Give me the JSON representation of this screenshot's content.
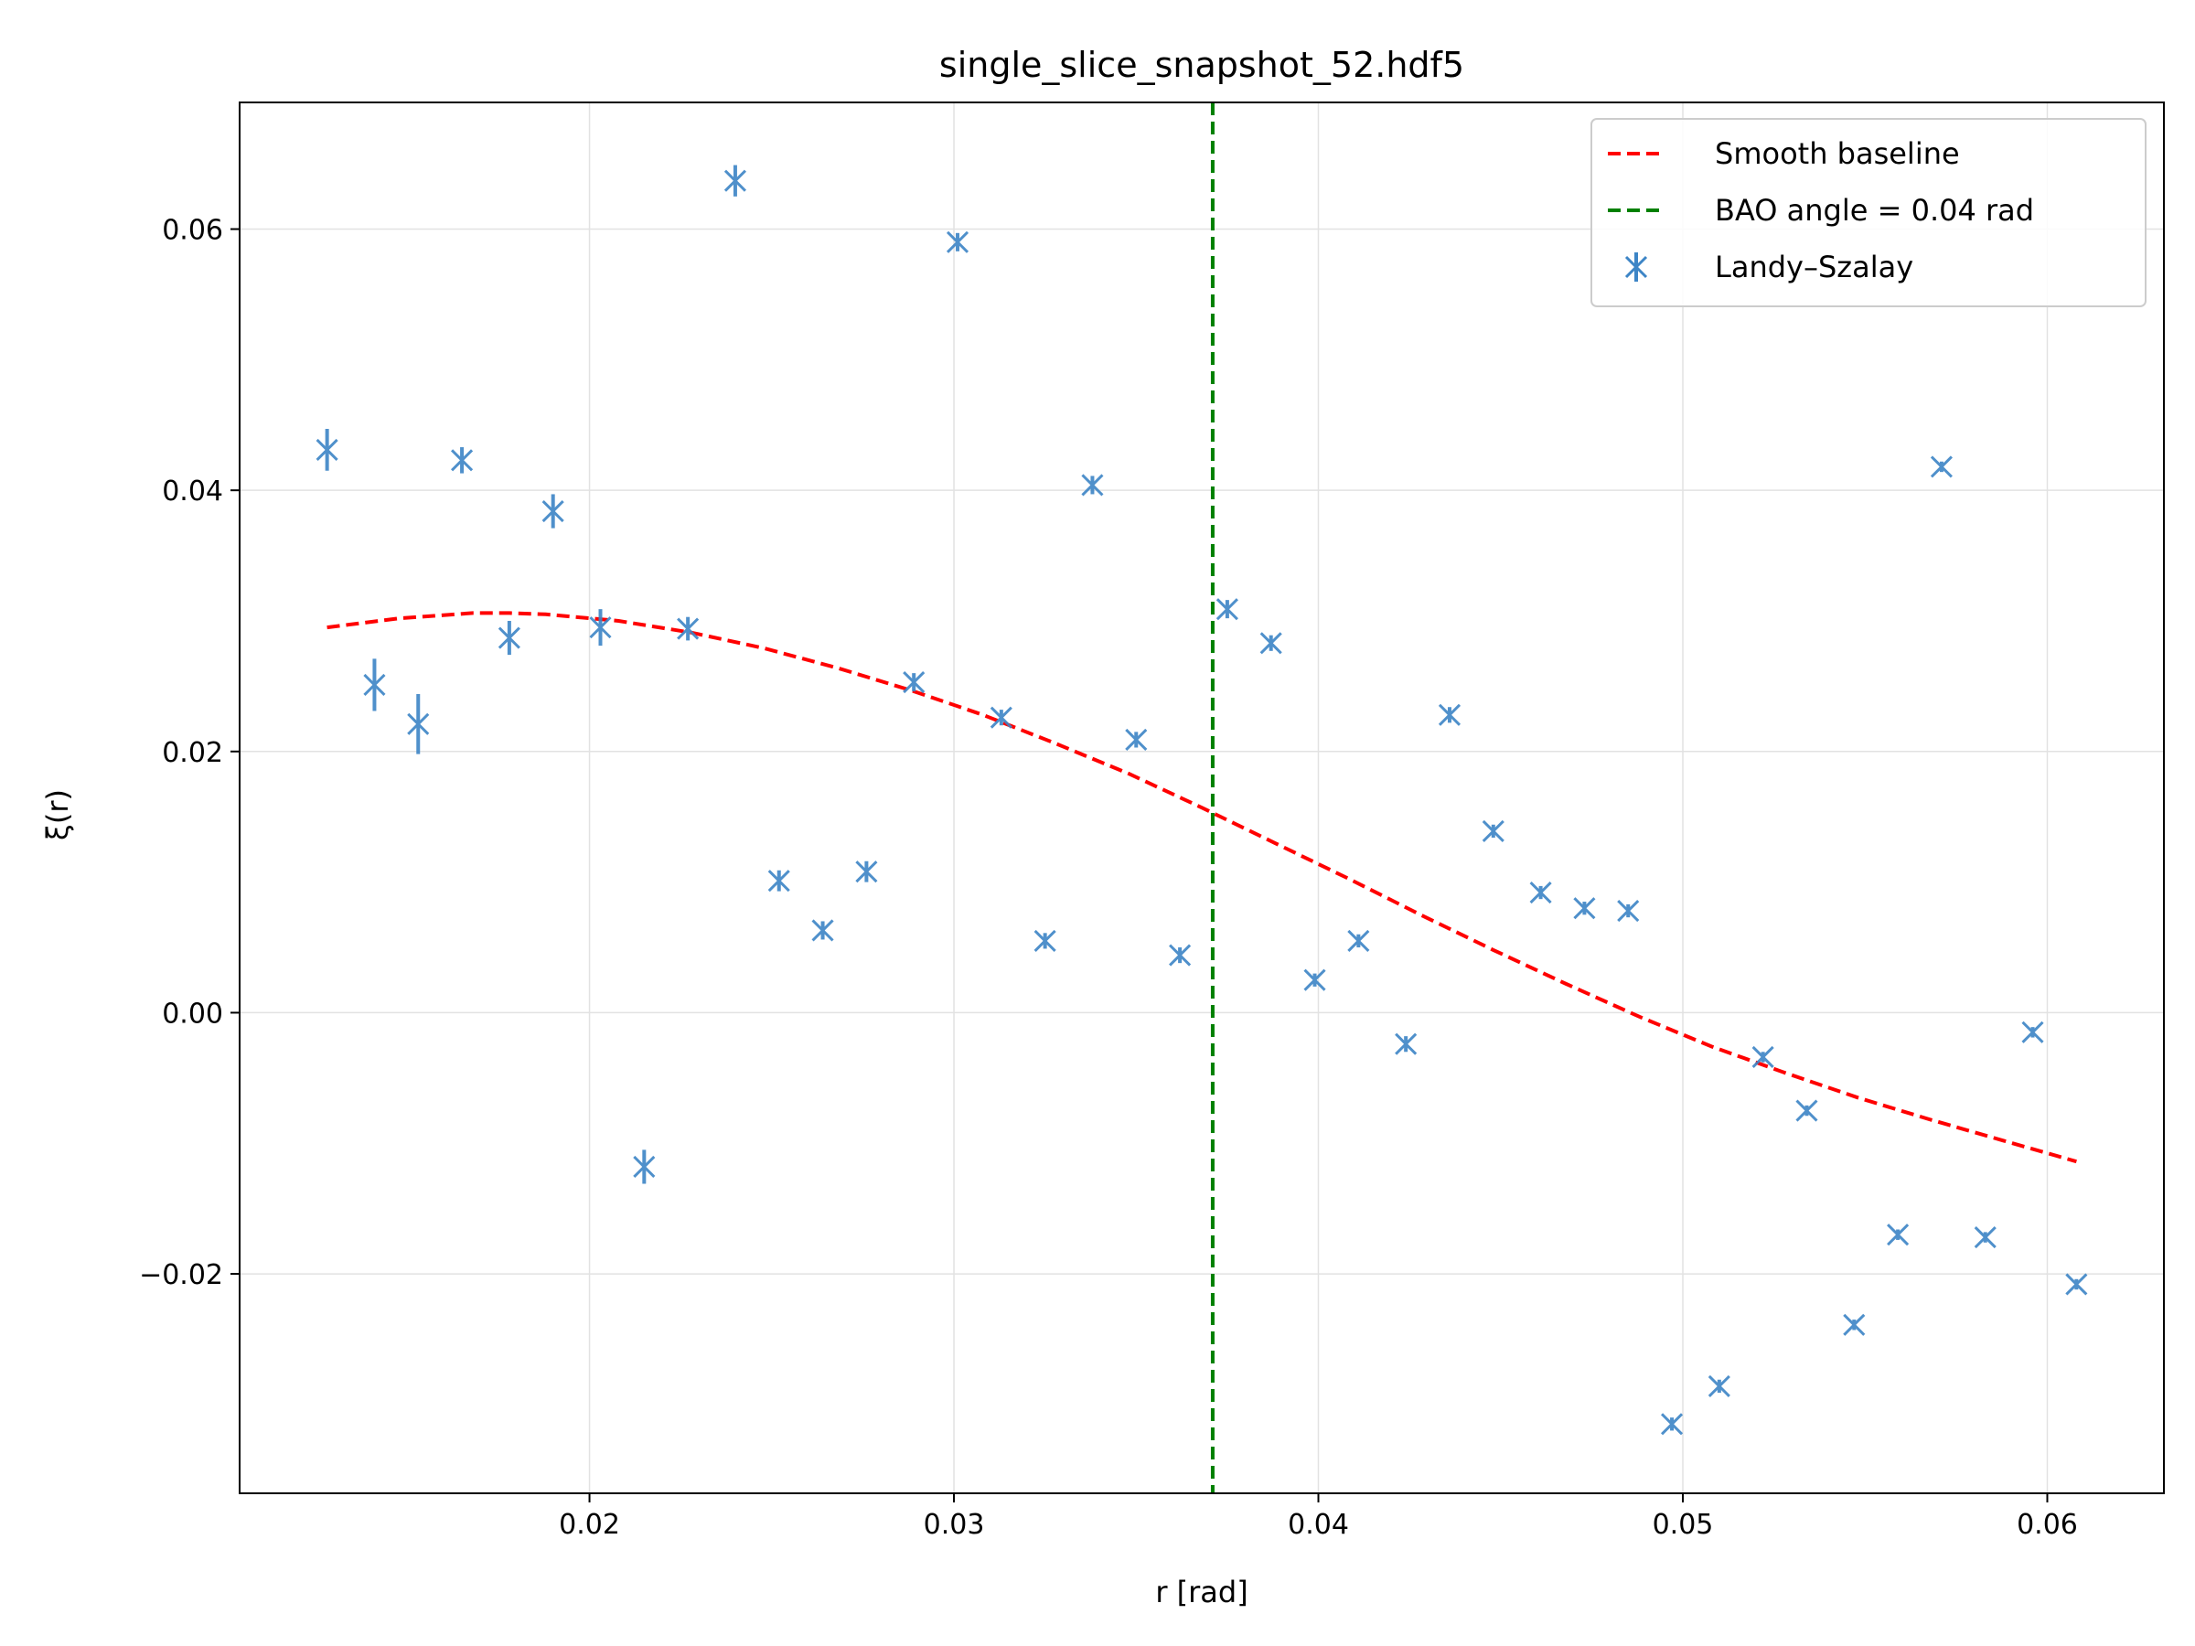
{
  "chart_data": {
    "type": "scatter",
    "title": "single_slice_snapshot_52.hdf5",
    "xlabel": "r [rad]",
    "ylabel": "ξ(r)",
    "xlim": [
      0.0104,
      0.0632
    ],
    "ylim": [
      -0.0368,
      0.0697
    ],
    "xticks": [
      0.02,
      0.03,
      0.04,
      0.05,
      0.06
    ],
    "xtick_labels": [
      "0.02",
      "0.03",
      "0.04",
      "0.05",
      "0.06"
    ],
    "yticks": [
      -0.02,
      0.0,
      0.02,
      0.04,
      0.06
    ],
    "ytick_labels": [
      "−0.02",
      "0.00",
      "0.02",
      "0.04",
      "0.06"
    ],
    "grid": true,
    "legend_position": "top-right",
    "colors": {
      "points": "#3d85c6",
      "baseline": "#ff0000",
      "bao": "#008000"
    },
    "series": [
      {
        "name": "Landy–Szalay",
        "kind": "errorbar",
        "x": [
          0.0128,
          0.0141,
          0.0153,
          0.0165,
          0.0178,
          0.019,
          0.0203,
          0.0215,
          0.0227,
          0.024,
          0.0252,
          0.0264,
          0.0276,
          0.0289,
          0.0301,
          0.0313,
          0.0325,
          0.0338,
          0.035,
          0.0362,
          0.0375,
          0.0387,
          0.0399,
          0.0411,
          0.0424,
          0.0436,
          0.0448,
          0.0461,
          0.0473,
          0.0485,
          0.0497,
          0.051,
          0.0522,
          0.0534,
          0.0547,
          0.0559,
          0.0571,
          0.0583,
          0.0596,
          0.0608
        ],
        "y": [
          0.0431,
          0.0251,
          0.0221,
          0.0423,
          0.0287,
          0.0384,
          0.0295,
          -0.0118,
          0.0294,
          0.0637,
          0.0101,
          0.0063,
          0.0108,
          0.0253,
          0.059,
          0.0226,
          0.0055,
          0.0404,
          0.0209,
          0.0044,
          0.0309,
          0.0283,
          0.0025,
          0.0055,
          -0.0024,
          0.0228,
          0.0139,
          0.0092,
          0.008,
          0.0078,
          -0.0315,
          -0.0286,
          -0.0034,
          -0.0075,
          -0.0239,
          -0.017,
          0.0418,
          -0.0172,
          -0.0015,
          -0.0208
        ],
        "yerr": [
          0.0016,
          0.002,
          0.0023,
          0.001,
          0.0013,
          0.0013,
          0.0014,
          0.0013,
          0.0009,
          0.0012,
          0.0008,
          0.0007,
          0.0008,
          0.0007,
          0.0007,
          0.0006,
          0.0006,
          0.0007,
          0.0006,
          0.0006,
          0.0007,
          0.0006,
          0.0005,
          0.0005,
          0.0006,
          0.0006,
          0.0005,
          0.0005,
          0.0005,
          0.0005,
          0.0005,
          0.0005,
          0.0004,
          0.0004,
          0.0004,
          0.0004,
          0.0004,
          0.0004,
          0.0004,
          0.0004
        ]
      },
      {
        "name": "Smooth baseline",
        "kind": "line",
        "style": "dashed",
        "x": [
          0.0128,
          0.0148,
          0.0168,
          0.0178,
          0.0188,
          0.0208,
          0.0228,
          0.0248,
          0.0268,
          0.0288,
          0.0308,
          0.0328,
          0.0348,
          0.0368,
          0.0388,
          0.0408,
          0.0428,
          0.0448,
          0.0468,
          0.0488,
          0.0508,
          0.0528,
          0.0548,
          0.0568,
          0.0588,
          0.0608
        ],
        "y": [
          0.0295,
          0.0302,
          0.0306,
          0.0306,
          0.0305,
          0.03,
          0.0291,
          0.0279,
          0.0264,
          0.0247,
          0.0228,
          0.0206,
          0.0183,
          0.0157,
          0.013,
          0.0103,
          0.0075,
          0.0048,
          0.0022,
          -0.0003,
          -0.0026,
          -0.0046,
          -0.0065,
          -0.0082,
          -0.0098,
          -0.0114
        ]
      },
      {
        "name": "BAO angle = 0.04 rad",
        "kind": "vline",
        "style": "dashed",
        "x": 0.0371
      }
    ],
    "legend_order": [
      "Smooth baseline",
      "BAO angle = 0.04 rad",
      "Landy–Szalay"
    ]
  }
}
